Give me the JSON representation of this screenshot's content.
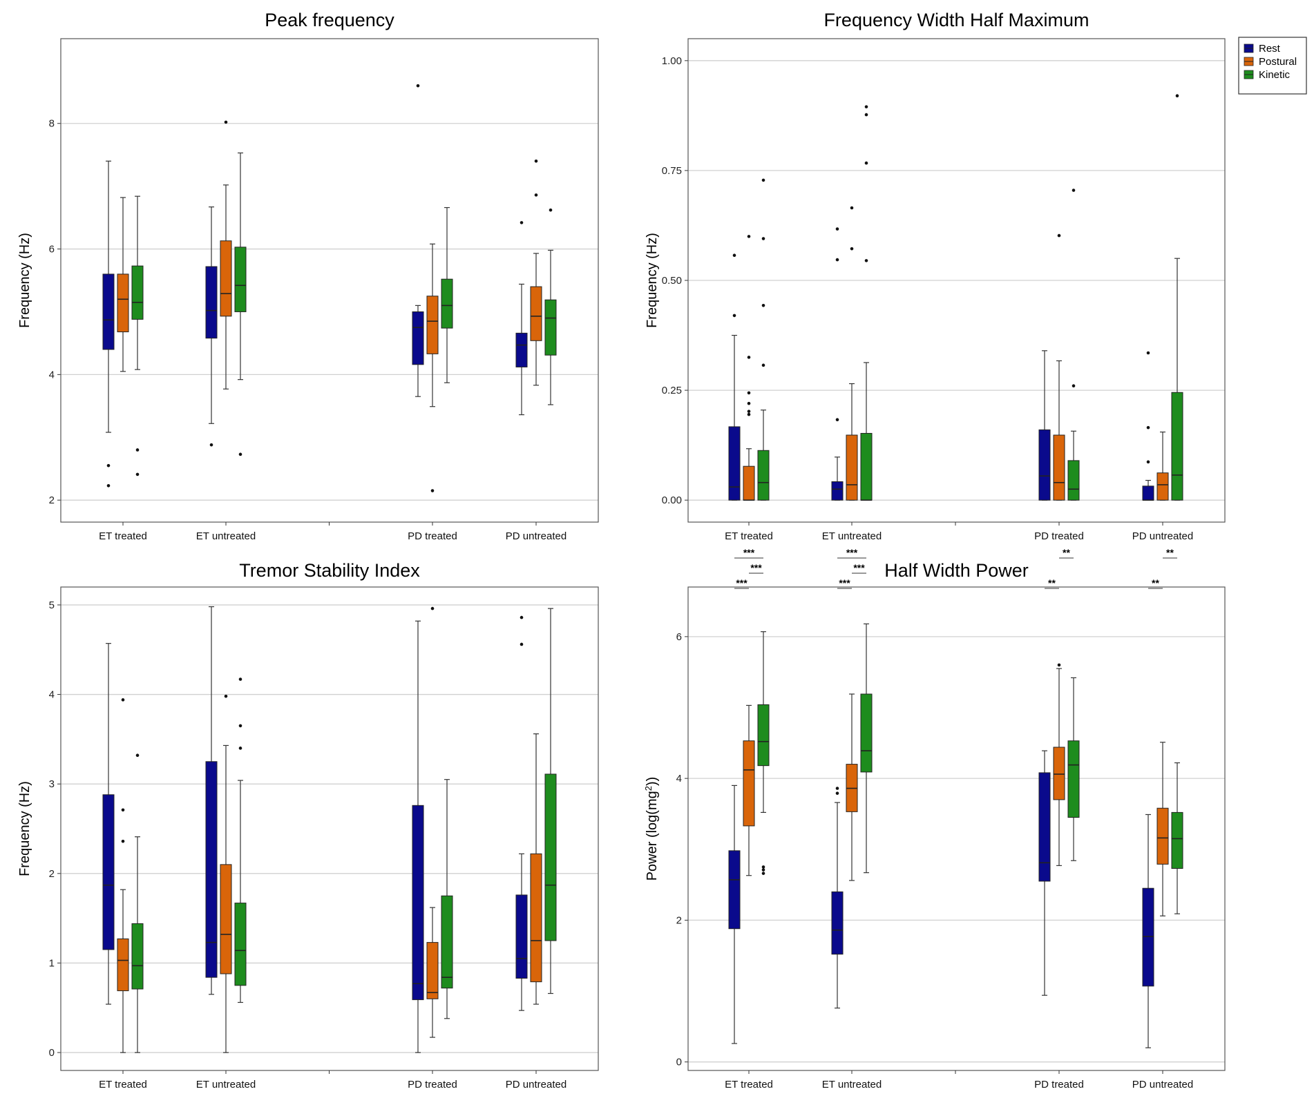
{
  "legend": {
    "items": [
      {
        "label": "Rest",
        "color": "#0a0a8c"
      },
      {
        "label": "Postural",
        "color": "#d9650a"
      },
      {
        "label": "Kinetic",
        "color": "#1e8c1e"
      }
    ]
  },
  "chart_data": [
    {
      "type": "box",
      "title": "Peak frequency",
      "ylabel": "Frequency (Hz)",
      "ylim": [
        1.65,
        9.35
      ],
      "yticks": [
        "2",
        "4",
        "6",
        "8"
      ],
      "ytick_values": [
        2,
        4,
        6,
        8
      ],
      "categories": [
        "ET treated",
        "ET untreated",
        "PD treated",
        "PD untreated"
      ],
      "series_names": [
        "Rest",
        "Postural",
        "Kinetic"
      ],
      "boxes": [
        [
          {
            "q1": 4.4,
            "median": 4.87,
            "q3": 5.6,
            "whislo": 3.08,
            "whishi": 7.4,
            "outliers": [
              2.55,
              2.23
            ]
          },
          {
            "q1": 4.68,
            "median": 5.2,
            "q3": 5.6,
            "whislo": 4.05,
            "whishi": 6.82,
            "outliers": []
          },
          {
            "q1": 4.88,
            "median": 5.15,
            "q3": 5.73,
            "whislo": 4.08,
            "whishi": 6.84,
            "outliers": [
              2.8,
              2.41
            ]
          }
        ],
        [
          {
            "q1": 4.58,
            "median": 5.02,
            "q3": 5.72,
            "whislo": 3.22,
            "whishi": 6.67,
            "outliers": [
              2.88
            ]
          },
          {
            "q1": 4.93,
            "median": 5.29,
            "q3": 6.13,
            "whislo": 3.77,
            "whishi": 7.02,
            "outliers": [
              8.02
            ]
          },
          {
            "q1": 5.0,
            "median": 5.42,
            "q3": 6.03,
            "whislo": 3.92,
            "whishi": 7.53,
            "outliers": [
              2.73
            ]
          }
        ],
        [
          {
            "q1": 4.16,
            "median": 4.75,
            "q3": 5.0,
            "whislo": 3.65,
            "whishi": 5.1,
            "outliers": [
              8.6
            ]
          },
          {
            "q1": 4.33,
            "median": 4.85,
            "q3": 5.25,
            "whislo": 3.49,
            "whishi": 6.08,
            "outliers": [
              2.15
            ]
          },
          {
            "q1": 4.74,
            "median": 5.1,
            "q3": 5.52,
            "whislo": 3.87,
            "whishi": 6.66,
            "outliers": []
          }
        ],
        [
          {
            "q1": 4.12,
            "median": 4.47,
            "q3": 4.66,
            "whislo": 3.36,
            "whishi": 5.44,
            "outliers": [
              6.42
            ]
          },
          {
            "q1": 4.54,
            "median": 4.93,
            "q3": 5.4,
            "whislo": 3.83,
            "whishi": 5.93,
            "outliers": [
              6.86,
              7.4
            ]
          },
          {
            "q1": 4.31,
            "median": 4.9,
            "q3": 5.19,
            "whislo": 3.52,
            "whishi": 5.98,
            "outliers": [
              6.62
            ]
          }
        ]
      ],
      "significance": []
    },
    {
      "type": "box",
      "title": "Frequency Width Half Maximum",
      "ylabel": "Frequency (Hz)",
      "ylim": [
        -0.05,
        1.05
      ],
      "yticks": [
        "0.00",
        "0.25",
        "0.50",
        "0.75",
        "1.00"
      ],
      "ytick_values": [
        0,
        0.25,
        0.5,
        0.75,
        1.0
      ],
      "categories": [
        "ET treated",
        "ET untreated",
        "PD treated",
        "PD untreated"
      ],
      "series_names": [
        "Rest",
        "Postural",
        "Kinetic"
      ],
      "boxes": [
        [
          {
            "q1": 0.0,
            "median": 0.03,
            "q3": 0.167,
            "whislo": 0.0,
            "whishi": 0.375,
            "outliers": [
              0.42,
              0.557
            ]
          },
          {
            "q1": 0.0,
            "median": 0.0,
            "q3": 0.077,
            "whislo": 0.0,
            "whishi": 0.117,
            "outliers": [
              0.195,
              0.202,
              0.22,
              0.244,
              0.325,
              0.6
            ]
          },
          {
            "q1": 0.0,
            "median": 0.04,
            "q3": 0.113,
            "whislo": 0.0,
            "whishi": 0.205,
            "outliers": [
              0.307,
              0.443,
              0.595,
              0.728
            ]
          }
        ],
        [
          {
            "q1": 0.0,
            "median": 0.025,
            "q3": 0.042,
            "whislo": 0.0,
            "whishi": 0.098,
            "outliers": [
              0.183,
              0.547,
              0.617
            ]
          },
          {
            "q1": 0.0,
            "median": 0.035,
            "q3": 0.148,
            "whislo": 0.0,
            "whishi": 0.265,
            "outliers": [
              0.572,
              0.665
            ]
          },
          {
            "q1": 0.0,
            "median": 0.0,
            "q3": 0.152,
            "whislo": 0.0,
            "whishi": 0.313,
            "outliers": [
              0.545,
              0.767,
              0.877,
              0.895
            ]
          }
        ],
        [
          {
            "q1": 0.0,
            "median": 0.055,
            "q3": 0.16,
            "whislo": 0.0,
            "whishi": 0.34,
            "outliers": []
          },
          {
            "q1": 0.0,
            "median": 0.04,
            "q3": 0.148,
            "whislo": 0.0,
            "whishi": 0.317,
            "outliers": [
              0.602
            ]
          },
          {
            "q1": 0.0,
            "median": 0.025,
            "q3": 0.09,
            "whislo": 0.0,
            "whishi": 0.157,
            "outliers": [
              0.26,
              0.705
            ]
          }
        ],
        [
          {
            "q1": 0.0,
            "median": 0.0,
            "q3": 0.032,
            "whislo": 0.0,
            "whishi": 0.045,
            "outliers": [
              0.087,
              0.165,
              0.335
            ]
          },
          {
            "q1": 0.0,
            "median": 0.035,
            "q3": 0.062,
            "whislo": 0.0,
            "whishi": 0.155,
            "outliers": []
          },
          {
            "q1": 0.0,
            "median": 0.057,
            "q3": 0.245,
            "whislo": 0.0,
            "whishi": 0.55,
            "outliers": [
              0.92
            ]
          }
        ]
      ],
      "significance": []
    },
    {
      "type": "box",
      "title": "Tremor Stability Index",
      "ylabel": "Frequency (Hz)",
      "ylim": [
        -0.2,
        5.2
      ],
      "yticks": [
        "0",
        "1",
        "2",
        "3",
        "4",
        "5"
      ],
      "ytick_values": [
        0,
        1,
        2,
        3,
        4,
        5
      ],
      "categories": [
        "ET treated",
        "ET untreated",
        "PD treated",
        "PD untreated"
      ],
      "series_names": [
        "Rest",
        "Postural",
        "Kinetic"
      ],
      "boxes": [
        [
          {
            "q1": 1.15,
            "median": 1.87,
            "q3": 2.88,
            "whislo": 0.54,
            "whishi": 4.57,
            "outliers": []
          },
          {
            "q1": 0.69,
            "median": 1.03,
            "q3": 1.27,
            "whislo": 0.0,
            "whishi": 1.82,
            "outliers": [
              2.36,
              2.71,
              3.94
            ]
          },
          {
            "q1": 0.71,
            "median": 0.97,
            "q3": 1.44,
            "whislo": 0.0,
            "whishi": 2.41,
            "outliers": [
              3.32
            ]
          }
        ],
        [
          {
            "q1": 0.84,
            "median": 1.23,
            "q3": 3.25,
            "whislo": 0.65,
            "whishi": 4.98,
            "outliers": []
          },
          {
            "q1": 0.88,
            "median": 1.32,
            "q3": 2.1,
            "whislo": 0.0,
            "whishi": 3.43,
            "outliers": [
              3.98
            ]
          },
          {
            "q1": 0.75,
            "median": 1.14,
            "q3": 1.67,
            "whislo": 0.56,
            "whishi": 3.04,
            "outliers": [
              3.4,
              3.65,
              4.17
            ]
          }
        ],
        [
          {
            "q1": 0.59,
            "median": 0.77,
            "q3": 2.76,
            "whislo": 0.0,
            "whishi": 4.82,
            "outliers": []
          },
          {
            "q1": 0.6,
            "median": 0.67,
            "q3": 1.23,
            "whislo": 0.17,
            "whishi": 1.62,
            "outliers": [
              4.96
            ]
          },
          {
            "q1": 0.72,
            "median": 0.84,
            "q3": 1.75,
            "whislo": 0.38,
            "whishi": 3.05,
            "outliers": []
          }
        ],
        [
          {
            "q1": 0.83,
            "median": 1.05,
            "q3": 1.76,
            "whislo": 0.47,
            "whishi": 2.22,
            "outliers": [
              4.56,
              4.86
            ]
          },
          {
            "q1": 0.79,
            "median": 1.25,
            "q3": 2.22,
            "whislo": 0.54,
            "whishi": 3.56,
            "outliers": []
          },
          {
            "q1": 1.25,
            "median": 1.87,
            "q3": 3.11,
            "whislo": 0.66,
            "whishi": 4.96,
            "outliers": []
          }
        ]
      ],
      "significance": []
    },
    {
      "type": "box",
      "title": "Half Width Power",
      "ylabel_main": "Power (log(mg",
      "ylabel_sup": "2",
      "ylabel_end": "))",
      "ylim": [
        -0.12,
        6.7
      ],
      "yticks": [
        "0",
        "2",
        "4",
        "6"
      ],
      "ytick_values": [
        0,
        2,
        4,
        6
      ],
      "categories": [
        "ET treated",
        "ET untreated",
        "PD treated",
        "PD untreated"
      ],
      "series_names": [
        "Rest",
        "Postural",
        "Kinetic"
      ],
      "boxes": [
        [
          {
            "q1": 1.88,
            "median": 2.57,
            "q3": 2.98,
            "whislo": 0.26,
            "whishi": 3.9,
            "outliers": []
          },
          {
            "q1": 3.33,
            "median": 4.12,
            "q3": 4.53,
            "whislo": 2.63,
            "whishi": 5.03,
            "outliers": []
          },
          {
            "q1": 4.18,
            "median": 4.52,
            "q3": 5.04,
            "whislo": 3.52,
            "whishi": 6.07,
            "outliers": [
              2.66,
              2.71,
              2.75
            ]
          }
        ],
        [
          {
            "q1": 1.52,
            "median": 1.86,
            "q3": 2.4,
            "whislo": 0.76,
            "whishi": 3.66,
            "outliers": [
              3.79,
              3.86
            ]
          },
          {
            "q1": 3.53,
            "median": 3.86,
            "q3": 4.2,
            "whislo": 2.56,
            "whishi": 5.19,
            "outliers": []
          },
          {
            "q1": 4.09,
            "median": 4.39,
            "q3": 5.19,
            "whislo": 2.67,
            "whishi": 6.18,
            "outliers": []
          }
        ],
        [
          {
            "q1": 2.55,
            "median": 2.81,
            "q3": 4.08,
            "whislo": 0.94,
            "whishi": 4.39,
            "outliers": []
          },
          {
            "q1": 3.7,
            "median": 4.06,
            "q3": 4.44,
            "whislo": 2.77,
            "whishi": 5.55,
            "outliers": [
              5.6
            ]
          },
          {
            "q1": 3.45,
            "median": 4.19,
            "q3": 4.53,
            "whislo": 2.84,
            "whishi": 5.42,
            "outliers": []
          }
        ],
        [
          {
            "q1": 1.07,
            "median": 1.77,
            "q3": 2.45,
            "whislo": 0.2,
            "whishi": 3.49,
            "outliers": []
          },
          {
            "q1": 2.79,
            "median": 3.16,
            "q3": 3.58,
            "whislo": 2.06,
            "whishi": 4.51,
            "outliers": []
          },
          {
            "q1": 2.73,
            "median": 3.15,
            "q3": 3.52,
            "whislo": 2.09,
            "whishi": 4.22,
            "outliers": []
          }
        ]
      ],
      "significance": [
        {
          "group": 0,
          "from": 0,
          "to": 2,
          "label": "***",
          "level": 3
        },
        {
          "group": 0,
          "from": 1,
          "to": 2,
          "label": "***",
          "level": 2
        },
        {
          "group": 0,
          "from": 0,
          "to": 1,
          "label": "***",
          "level": 1
        },
        {
          "group": 1,
          "from": 0,
          "to": 2,
          "label": "***",
          "level": 3
        },
        {
          "group": 1,
          "from": 1,
          "to": 2,
          "label": "***",
          "level": 2
        },
        {
          "group": 1,
          "from": 0,
          "to": 1,
          "label": "***",
          "level": 1
        },
        {
          "group": 2,
          "from": 1,
          "to": 2,
          "label": "**",
          "level": 3
        },
        {
          "group": 2,
          "from": 0,
          "to": 1,
          "label": "**",
          "level": 1
        },
        {
          "group": 3,
          "from": 1,
          "to": 2,
          "label": "**",
          "level": 3
        },
        {
          "group": 3,
          "from": 0,
          "to": 1,
          "label": "**",
          "level": 1
        }
      ]
    }
  ]
}
